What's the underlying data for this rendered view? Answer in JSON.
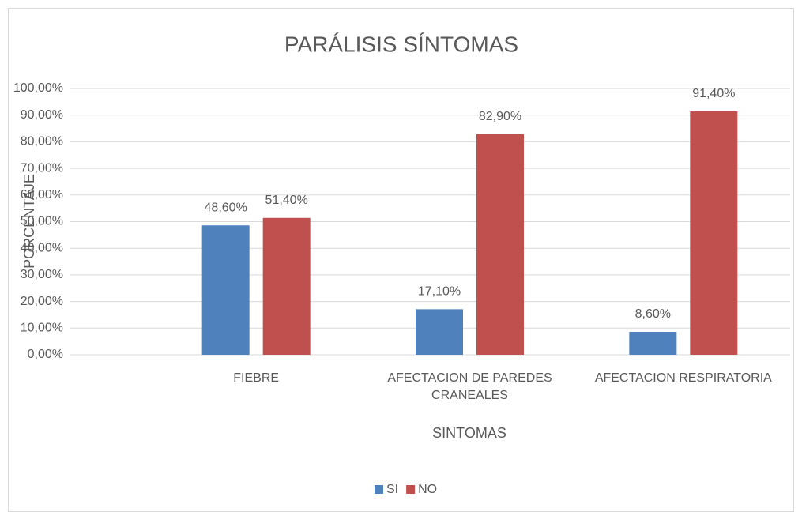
{
  "chart_data": {
    "type": "bar",
    "title": "PARÁLISIS SÍNTOMAS",
    "x_label": "SINTOMAS",
    "y_label": "PORCENTAJE",
    "categories": [
      "FIEBRE",
      "AFECTACION DE PAREDES CRANEALES",
      "AFECTACION RESPIRATORIA"
    ],
    "series": [
      {
        "name": "SI",
        "color": "#4f81bd",
        "values": [
          48.6,
          17.1,
          8.6
        ],
        "value_labels": [
          "48,60%",
          "17,10%",
          "8,60%"
        ]
      },
      {
        "name": "NO",
        "color": "#c0504d",
        "values": [
          51.4,
          82.9,
          91.4
        ],
        "value_labels": [
          "51,40%",
          "82,90%",
          "91,40%"
        ]
      }
    ],
    "ylim": [
      0,
      100
    ],
    "yticks": [
      {
        "value": 0,
        "label": "0,00%"
      },
      {
        "value": 10,
        "label": "10,00%"
      },
      {
        "value": 20,
        "label": "20,00%"
      },
      {
        "value": 30,
        "label": "30,00%"
      },
      {
        "value": 40,
        "label": "40,00%"
      },
      {
        "value": 50,
        "label": "50,00%"
      },
      {
        "value": 60,
        "label": "60,00%"
      },
      {
        "value": 70,
        "label": "70,00%"
      },
      {
        "value": 80,
        "label": "80,00%"
      },
      {
        "value": 90,
        "label": "90,00%"
      },
      {
        "value": 100,
        "label": "100,00%"
      }
    ],
    "grid": true,
    "legend": "bottom"
  }
}
